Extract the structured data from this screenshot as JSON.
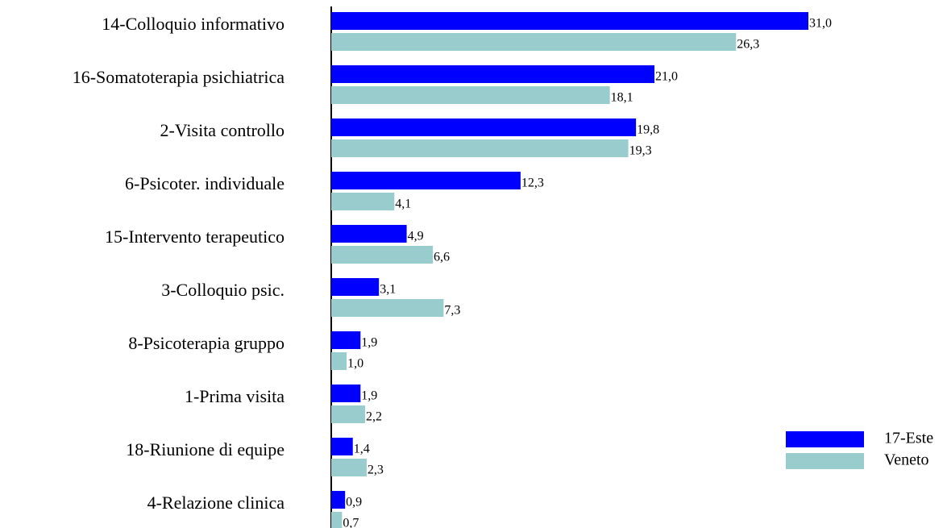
{
  "chart_data": {
    "type": "bar",
    "orientation": "horizontal",
    "categories": [
      "14-Colloquio informativo",
      "16-Somatoterapia psichiatrica",
      "2-Visita controllo",
      "6-Psicoter. individuale",
      "15-Intervento terapeutico",
      "3-Colloquio psic.",
      "8-Psicoterapia gruppo",
      "1-Prima visita",
      "18-Riunione di equipe",
      "4-Relazione clinica"
    ],
    "series": [
      {
        "name": "17-Este",
        "color": "#0000ff",
        "values": [
          31.0,
          21.0,
          19.8,
          12.3,
          4.9,
          3.1,
          1.9,
          1.9,
          1.4,
          0.9
        ],
        "value_labels": [
          "31,0",
          "21,0",
          "19,8",
          "12,3",
          "4,9",
          "3,1",
          "1,9",
          "1,9",
          "1,4",
          "0,9"
        ]
      },
      {
        "name": "Veneto",
        "color": "#99cccc",
        "values": [
          26.3,
          18.1,
          19.3,
          4.1,
          6.6,
          7.3,
          1.0,
          2.2,
          2.3,
          0.7
        ],
        "value_labels": [
          "26,3",
          "18,1",
          "19,3",
          "4,1",
          "6,6",
          "7,3",
          "1,0",
          "2,2",
          "2,3",
          "0,7"
        ]
      }
    ],
    "legend": "right"
  }
}
